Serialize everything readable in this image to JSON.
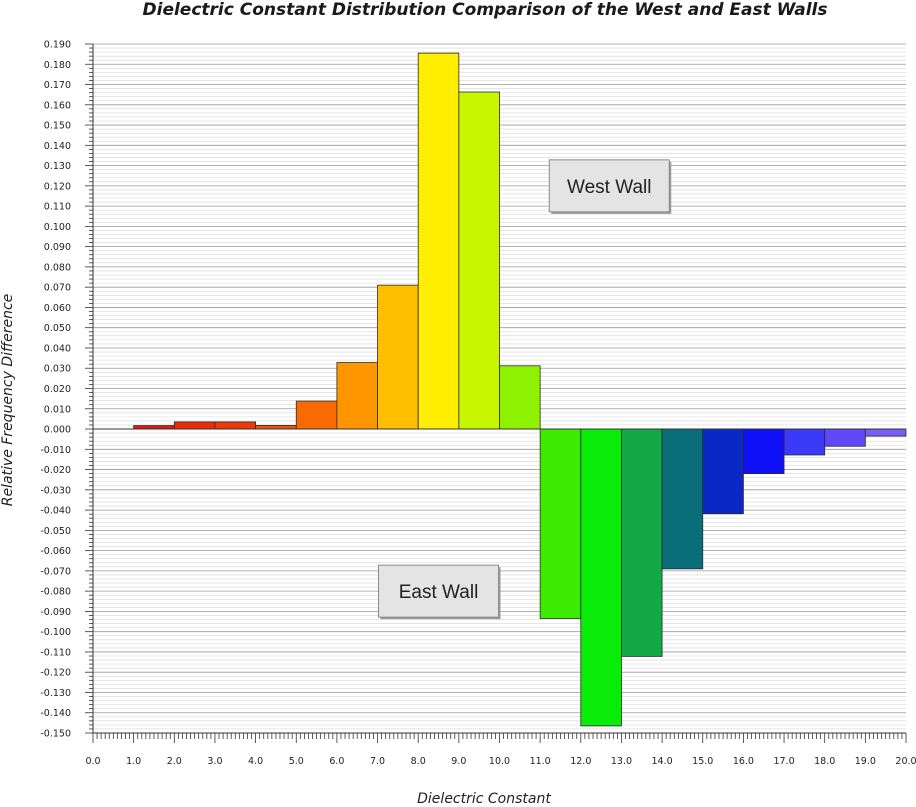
{
  "chart_data": {
    "type": "bar",
    "title": "Dielectric Constant Distribution Comparison of the West and East Walls",
    "xlabel": "Dielectric Constant",
    "ylabel": "Relative Frequency Difference",
    "xlim": [
      0,
      20
    ],
    "ylim": [
      -0.15,
      0.19
    ],
    "x_ticks": [
      "0.0",
      "1.0",
      "2.0",
      "3.0",
      "4.0",
      "5.0",
      "6.0",
      "7.0",
      "8.0",
      "9.0",
      "10.0",
      "11.0",
      "12.0",
      "13.0",
      "14.0",
      "15.0",
      "16.0",
      "17.0",
      "18.0",
      "19.0",
      "20.0"
    ],
    "y_ticks": [
      "0.190",
      "0.180",
      "0.170",
      "0.160",
      "0.150",
      "0.140",
      "0.130",
      "0.120",
      "0.110",
      "0.100",
      "0.090",
      "0.080",
      "0.070",
      "0.060",
      "0.050",
      "0.040",
      "0.030",
      "0.020",
      "0.010",
      "0.000",
      "-0.010",
      "-0.020",
      "-0.030",
      "-0.040",
      "-0.050",
      "-0.060",
      "-0.070",
      "-0.080",
      "-0.090",
      "-0.100",
      "-0.110",
      "-0.120",
      "-0.130",
      "-0.140",
      "-0.150"
    ],
    "bins": [
      {
        "x0": 1,
        "x1": 2,
        "value": 0.0017,
        "color": "#e8140c"
      },
      {
        "x0": 2,
        "x1": 3,
        "value": 0.0035,
        "color": "#ee2a08"
      },
      {
        "x0": 3,
        "x1": 4,
        "value": 0.0035,
        "color": "#f03a06"
      },
      {
        "x0": 4,
        "x1": 5,
        "value": 0.0018,
        "color": "#f45004"
      },
      {
        "x0": 5,
        "x1": 6,
        "value": 0.0138,
        "color": "#fa6a02"
      },
      {
        "x0": 6,
        "x1": 7,
        "value": 0.0328,
        "color": "#ff9600"
      },
      {
        "x0": 7,
        "x1": 8,
        "value": 0.071,
        "color": "#ffbf00"
      },
      {
        "x0": 8,
        "x1": 9,
        "value": 0.1855,
        "color": "#ffee00"
      },
      {
        "x0": 9,
        "x1": 10,
        "value": 0.1663,
        "color": "#c8f500"
      },
      {
        "x0": 10,
        "x1": 11,
        "value": 0.0312,
        "color": "#8ff200"
      },
      {
        "x0": 11,
        "x1": 12,
        "value": -0.0935,
        "color": "#3cec00"
      },
      {
        "x0": 12,
        "x1": 13,
        "value": -0.1465,
        "color": "#08ec08"
      },
      {
        "x0": 13,
        "x1": 14,
        "value": -0.1122,
        "color": "#12a846"
      },
      {
        "x0": 14,
        "x1": 15,
        "value": -0.069,
        "color": "#0a6e7a"
      },
      {
        "x0": 15,
        "x1": 16,
        "value": -0.0418,
        "color": "#0a28c6"
      },
      {
        "x0": 16,
        "x1": 17,
        "value": -0.022,
        "color": "#1010f6"
      },
      {
        "x0": 17,
        "x1": 18,
        "value": -0.0128,
        "color": "#3a3af8"
      },
      {
        "x0": 18,
        "x1": 19,
        "value": -0.0085,
        "color": "#5e48f8"
      },
      {
        "x0": 19,
        "x1": 20,
        "value": -0.0035,
        "color": "#7a5cf6"
      }
    ],
    "grid": true,
    "annotations": [
      {
        "text": "West Wall",
        "x": 12.7,
        "y": 0.12
      },
      {
        "text": "East Wall",
        "x": 8.5,
        "y": -0.08
      }
    ]
  }
}
